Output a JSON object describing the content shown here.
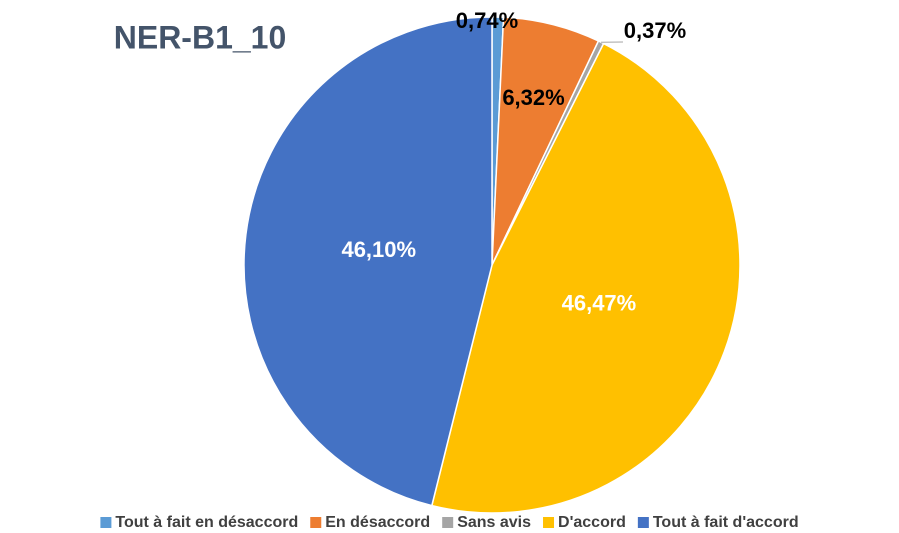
{
  "chart_data": {
    "type": "pie",
    "title": "NER-B1_10",
    "categories": [
      "Tout à fait en désaccord",
      "En désaccord",
      "Sans avis",
      "D'accord",
      "Tout à fait d'accord"
    ],
    "values": [
      0.74,
      6.32,
      0.37,
      46.47,
      46.1
    ],
    "value_labels": [
      "0,74%",
      "6,32%",
      "0,37%",
      "46,47%",
      "46,10%"
    ],
    "colors": [
      "#5b9bd5",
      "#ed7d31",
      "#a5a5a5",
      "#ffc000",
      "#4472c4"
    ],
    "legend": "bottom"
  }
}
